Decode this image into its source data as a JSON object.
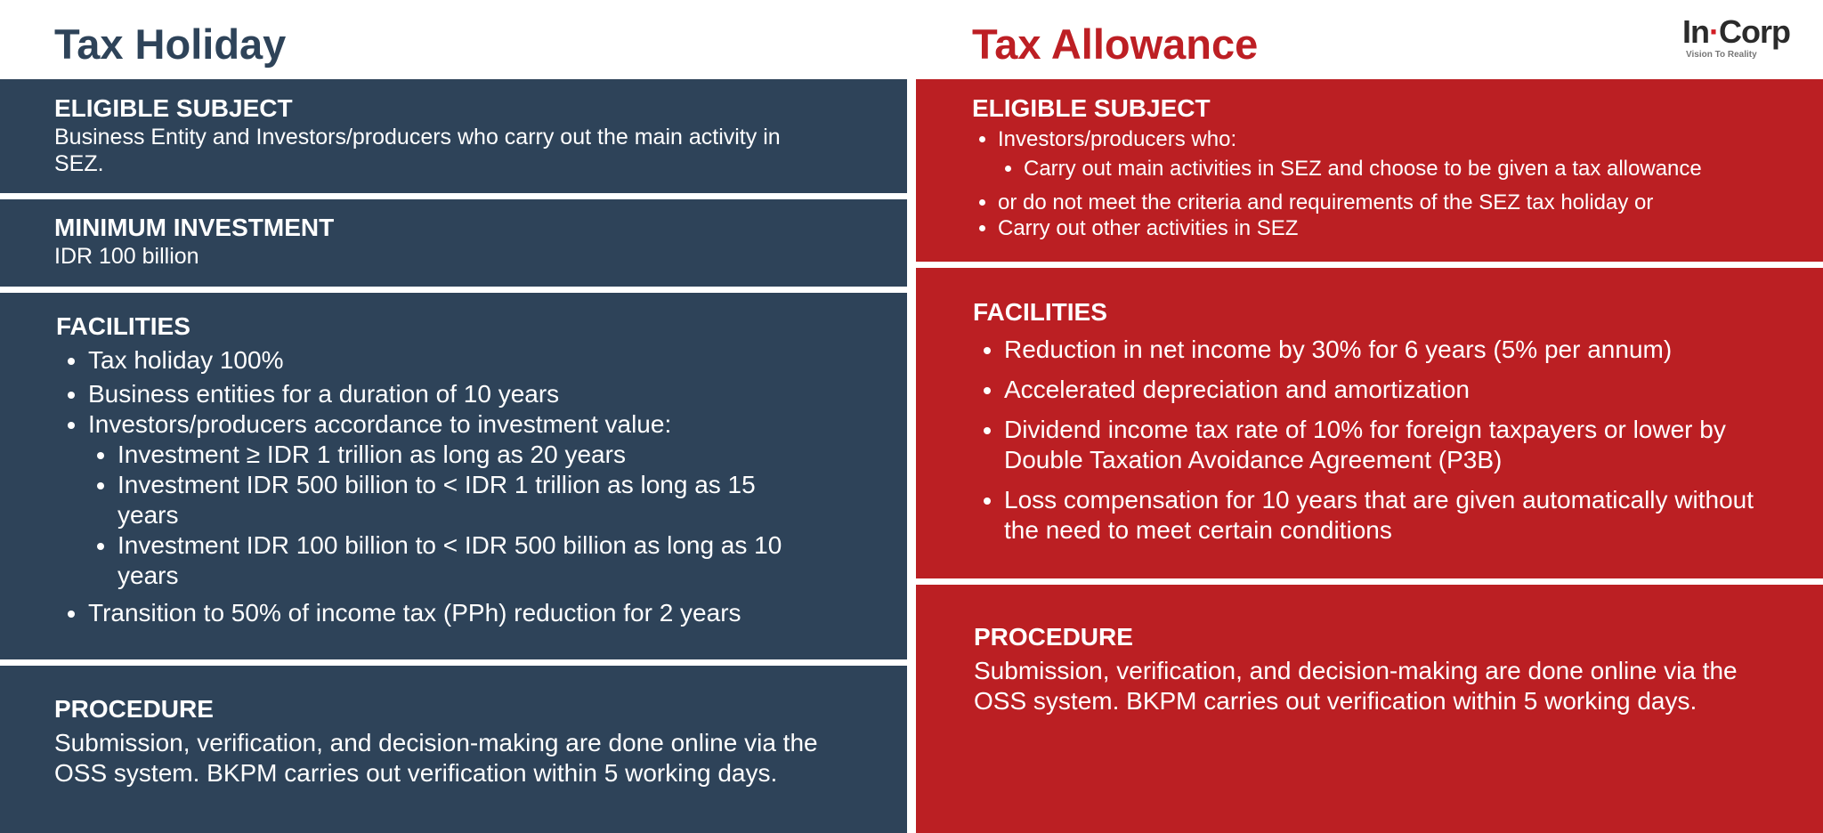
{
  "header": {
    "left_title": "Tax Holiday",
    "right_title": "Tax Allowance",
    "logo": {
      "word_part1": "In",
      "dot": "·",
      "word_part2": "Corp",
      "tagline": "Vision To Reality"
    }
  },
  "tax_holiday": {
    "eligible_subject": {
      "heading": "ELIGIBLE SUBJECT",
      "body": "Business Entity and Investors/producers who carry out the main activity in SEZ."
    },
    "minimum_investment": {
      "heading": "MINIMUM INVESTMENT",
      "body": "IDR 100 billion"
    },
    "facilities": {
      "heading": "FACILITIES",
      "items": [
        "Tax holiday 100%",
        "Business entities for a duration of 10 years",
        "Investors/producers accordance to investment value:",
        "Transition to 50% of income tax (PPh) reduction for 2 years"
      ],
      "sub_items": [
        "Investment ≥ IDR 1 trillion as long as 20 years",
        "Investment IDR 500 billion to < IDR 1 trillion as long as 15 years",
        "Investment IDR 100 billion to < IDR 500 billion as long as 10 years"
      ]
    },
    "procedure": {
      "heading": "PROCEDURE",
      "body": "Submission, verification, and decision-making are done online via the OSS system. BKPM carries out verification within 5 working days."
    }
  },
  "tax_allowance": {
    "eligible_subject": {
      "heading": "ELIGIBLE SUBJECT",
      "items": [
        "Investors/producers who:",
        "or do not meet the criteria and requirements of the SEZ tax holiday or",
        "Carry out other activities in SEZ"
      ],
      "sub_items": [
        "Carry out main activities in SEZ and choose to be given a tax allowance"
      ]
    },
    "facilities": {
      "heading": "FACILITIES",
      "items": [
        "Reduction in net income by 30% for 6 years (5% per annum)",
        "Accelerated depreciation and amortization",
        "Dividend income tax rate of 10% for foreign taxpayers or lower by Double Taxation Avoidance Agreement (P3B)",
        "Loss compensation for 10 years that are given automatically without the need to meet certain conditions"
      ]
    },
    "procedure": {
      "heading": "PROCEDURE",
      "body": "Submission, verification, and decision-making are done online via the OSS system. BKPM carries out verification within 5 working days."
    }
  },
  "colors": {
    "navy": "#2e4359",
    "red": "#bb1f23",
    "title_navy": "#2e4359",
    "title_red": "#bd1f24"
  }
}
